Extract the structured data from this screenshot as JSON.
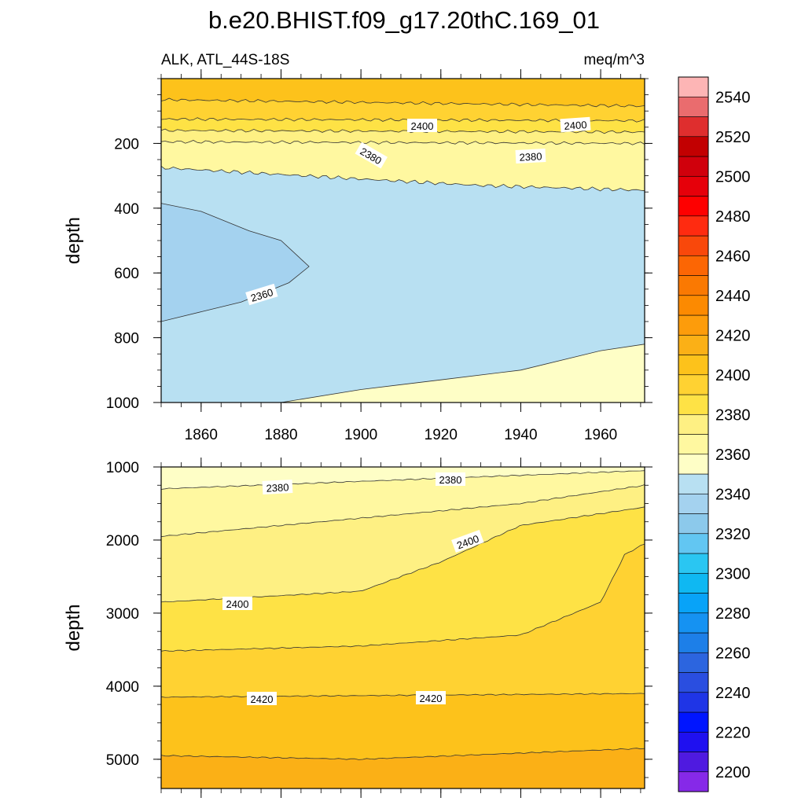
{
  "chart_data": {
    "type": "contour",
    "title": "b.e20.BHIST.f09_g17.20thC.169_01",
    "left_subtitle": "ALK, ATL_44S-18S",
    "right_subtitle": "meq/m^3",
    "panels": [
      {
        "name": "upper",
        "xlim": [
          1850,
          1971
        ],
        "ylim": [
          0,
          1000
        ],
        "y_inverted": true,
        "ylabel": "depth",
        "yticks": [
          200,
          400,
          600,
          800,
          1000
        ],
        "xticks": [
          1860,
          1880,
          1900,
          1920,
          1940,
          1960
        ],
        "contour_labels": [
          "2400",
          "2400",
          "2380",
          "2380",
          "2360"
        ],
        "level_boundaries": [
          {
            "level": 2420,
            "x": [
              1850,
              1971
            ],
            "depth": [
              65,
              85
            ]
          },
          {
            "level": 2410,
            "x": [
              1850,
              1971
            ],
            "depth": [
              125,
              130
            ]
          },
          {
            "level": 2400,
            "x": [
              1850,
              1971
            ],
            "depth": [
              160,
              165
            ]
          },
          {
            "level": 2390,
            "x": [
              1850,
              1971
            ],
            "depth": [
              195,
              200
            ]
          },
          {
            "level": 2370,
            "x": [
              1850,
              1900,
              1930,
              1971
            ],
            "depth": [
              275,
              310,
              330,
              345
            ]
          },
          {
            "level": 2360,
            "x": [
              1850,
              1860,
              1872,
              1880,
              1887,
              1882,
              1870,
              1860,
              1850
            ],
            "depth": [
              385,
              410,
              470,
              500,
              580,
              630,
              690,
              720,
              750
            ]
          },
          {
            "level": 2370,
            "x": [
              1880,
              1900,
              1920,
              1940,
              1960,
              1971
            ],
            "depth": [
              1000,
              960,
              930,
              900,
              840,
              820
            ]
          }
        ]
      },
      {
        "name": "lower",
        "xlim": [
          1850,
          1971
        ],
        "ylim": [
          1000,
          5400
        ],
        "y_inverted": true,
        "ylabel": "depth",
        "yticks": [
          1000,
          2000,
          3000,
          4000,
          5000
        ],
        "contour_labels": [
          "2380",
          "2380",
          "2400",
          "2400",
          "2420",
          "2420"
        ],
        "level_boundaries": [
          {
            "level": 2380,
            "x": [
              1850,
              1971
            ],
            "depth": [
              1300,
              1050
            ]
          },
          {
            "level": 2390,
            "x": [
              1850,
              1900,
              1940,
              1971
            ],
            "depth": [
              1950,
              1700,
              1500,
              1250
            ]
          },
          {
            "level": 2400,
            "x": [
              1850,
              1900,
              1920,
              1940,
              1971
            ],
            "depth": [
              2850,
              2700,
              2300,
              1800,
              1550
            ]
          },
          {
            "level": 2410,
            "x": [
              1850,
              1900,
              1940,
              1960,
              1966,
              1971
            ],
            "depth": [
              3520,
              3450,
              3300,
              2850,
              2200,
              2050
            ]
          },
          {
            "level": 2420,
            "x": [
              1850,
              1971
            ],
            "depth": [
              4150,
              4100
            ]
          },
          {
            "level": 2430,
            "x": [
              1850,
              1900,
              1971
            ],
            "depth": [
              4950,
              5000,
              4850
            ]
          }
        ]
      }
    ],
    "colorbar": {
      "labels": [
        "2200",
        "2220",
        "2240",
        "2260",
        "2280",
        "2300",
        "2320",
        "2340",
        "2360",
        "2380",
        "2400",
        "2420",
        "2440",
        "2460",
        "2480",
        "2500",
        "2520",
        "2540"
      ],
      "colors_bottom_to_top": [
        "#8629e8",
        "#4f1ae0",
        "#1f10f0",
        "#0015ff",
        "#1f35e6",
        "#2a4ee0",
        "#2c65df",
        "#1d7fe8",
        "#1592f2",
        "#08a3f8",
        "#0fb8f2",
        "#2ac6f2",
        "#62c6f2",
        "#8cc9eb",
        "#a4d2ef",
        "#b8e0f2",
        "#fefec6",
        "#fff8a0",
        "#fef083",
        "#fee245",
        "#ffd232",
        "#fdc21b",
        "#fbb016",
        "#fd9c0b",
        "#fc8a01",
        "#fa7902",
        "#fc6604",
        "#f9480b",
        "#ff2b10",
        "#fe0000",
        "#e6000a",
        "#d0000c",
        "#c20001",
        "#df2e2e",
        "#ea6c6e",
        "#fdb5b5"
      ]
    },
    "colors": {
      "c2350": "#a4d2ef",
      "c2360": "#b8e0f2",
      "c2370": "#fefec6",
      "c2380": "#fff8a0",
      "c2390": "#fef083",
      "c2400": "#fee245",
      "c2410": "#ffd232",
      "c2420": "#fdc21b",
      "c2430": "#fbb016"
    }
  }
}
